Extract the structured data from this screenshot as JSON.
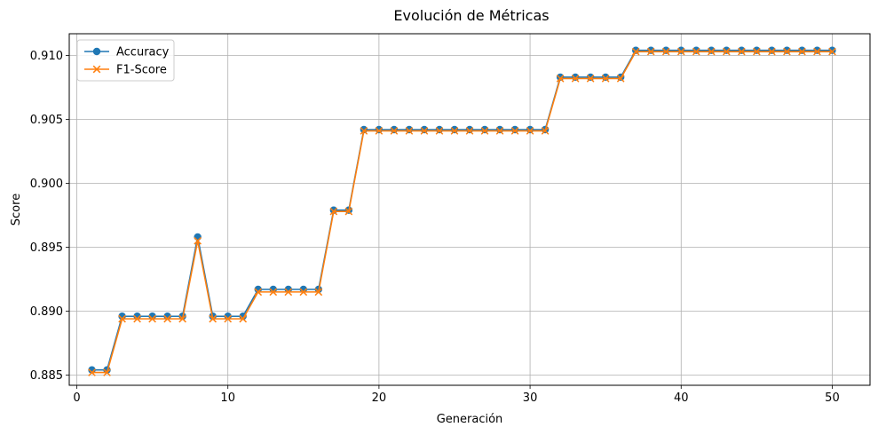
{
  "chart_data": {
    "type": "line",
    "title": "Evolución de Métricas",
    "xlabel": "Generación",
    "ylabel": "Score",
    "xlim": [
      -0.5,
      52.5
    ],
    "ylim": [
      0.8842,
      0.9117
    ],
    "xticks": [
      0,
      10,
      20,
      30,
      40,
      50
    ],
    "xtick_labels": [
      "0",
      "10",
      "20",
      "30",
      "40",
      "50"
    ],
    "yticks": [
      0.885,
      0.89,
      0.895,
      0.9,
      0.905,
      0.91
    ],
    "ytick_labels": [
      "0.885",
      "0.890",
      "0.895",
      "0.900",
      "0.905",
      "0.910"
    ],
    "grid": true,
    "legend_position": "top-left",
    "x": [
      1,
      2,
      3,
      4,
      5,
      6,
      7,
      8,
      9,
      10,
      11,
      12,
      13,
      14,
      15,
      16,
      17,
      18,
      19,
      20,
      21,
      22,
      23,
      24,
      25,
      26,
      27,
      28,
      29,
      30,
      31,
      32,
      33,
      34,
      35,
      36,
      37,
      38,
      39,
      40,
      41,
      42,
      43,
      44,
      45,
      46,
      47,
      48,
      49,
      50
    ],
    "series": [
      {
        "name": "Accuracy",
        "color": "#1f77b4",
        "marker": "circle",
        "values": [
          0.8854,
          0.8854,
          0.8896,
          0.8896,
          0.8896,
          0.8896,
          0.8896,
          0.8958,
          0.8896,
          0.8896,
          0.8896,
          0.8917,
          0.8917,
          0.8917,
          0.8917,
          0.8917,
          0.8979,
          0.8979,
          0.9042,
          0.9042,
          0.9042,
          0.9042,
          0.9042,
          0.9042,
          0.9042,
          0.9042,
          0.9042,
          0.9042,
          0.9042,
          0.9042,
          0.9042,
          0.9083,
          0.9083,
          0.9083,
          0.9083,
          0.9083,
          0.9104,
          0.9104,
          0.9104,
          0.9104,
          0.9104,
          0.9104,
          0.9104,
          0.9104,
          0.9104,
          0.9104,
          0.9104,
          0.9104,
          0.9104,
          0.9104
        ]
      },
      {
        "name": "F1-Score",
        "color": "#ff7f0e",
        "marker": "x",
        "values": [
          0.8852,
          0.8852,
          0.8894,
          0.8894,
          0.8894,
          0.8894,
          0.8894,
          0.8955,
          0.8894,
          0.8894,
          0.8894,
          0.8915,
          0.8915,
          0.8915,
          0.8915,
          0.8915,
          0.8978,
          0.8978,
          0.9041,
          0.9041,
          0.9041,
          0.9041,
          0.9041,
          0.9041,
          0.9041,
          0.9041,
          0.9041,
          0.9041,
          0.9041,
          0.9041,
          0.9041,
          0.9082,
          0.9082,
          0.9082,
          0.9082,
          0.9082,
          0.9103,
          0.9103,
          0.9103,
          0.9103,
          0.9103,
          0.9103,
          0.9103,
          0.9103,
          0.9103,
          0.9103,
          0.9103,
          0.9103,
          0.9103,
          0.9103
        ]
      }
    ]
  }
}
